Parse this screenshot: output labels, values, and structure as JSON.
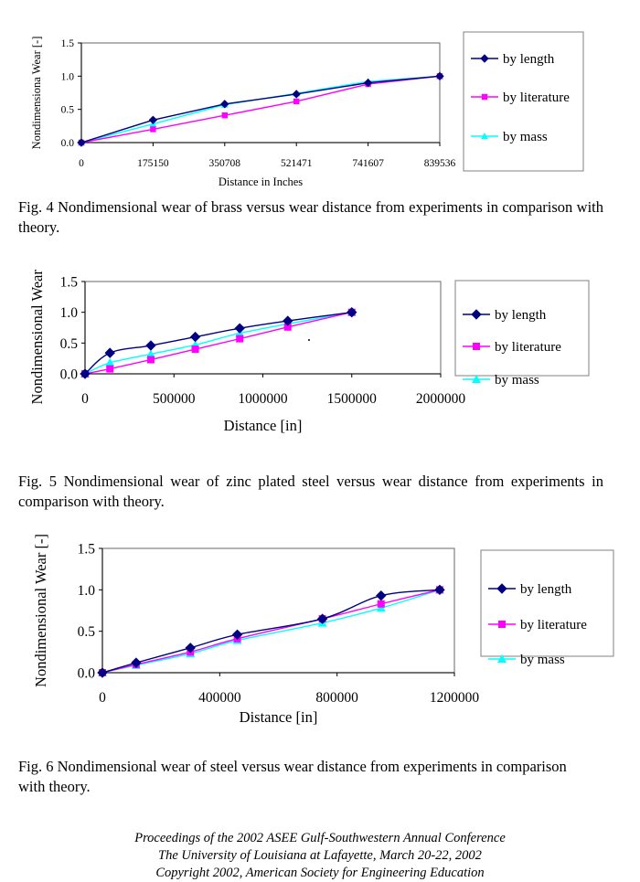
{
  "figures": [
    {
      "caption": "Fig. 4 Nondimensional wear of brass versus wear distance from experiments in comparison with theory."
    },
    {
      "caption": "Fig. 5 Nondimensional wear of zinc plated steel versus wear distance from experiments in comparison with theory."
    },
    {
      "caption": "Fig. 6 Nondimensional wear of steel versus wear distance from experiments in comparison with theory."
    }
  ],
  "chart_data": [
    {
      "type": "line",
      "xscale": "category",
      "categories": [
        "0",
        "175150",
        "350708",
        "521471",
        "741607",
        "839536"
      ],
      "title": "",
      "xlabel": "Distance in Inches",
      "ylabel": "Nondimensiona Wear [-]",
      "ylim": [
        0,
        1.5
      ],
      "yticks": [
        "0.0",
        "0.5",
        "1.0",
        "1.5"
      ],
      "legend_position": "right",
      "series": [
        {
          "name": "by length",
          "values": [
            0,
            0.34,
            0.58,
            0.73,
            0.9,
            1.0
          ]
        },
        {
          "name": "by literature",
          "values": [
            0,
            0.2,
            0.41,
            0.62,
            0.88,
            1.0
          ]
        },
        {
          "name": "by mass",
          "values": [
            0,
            0.28,
            0.57,
            0.74,
            0.92,
            1.0
          ]
        }
      ],
      "colors": {
        "by length": "#000080",
        "by literature": "#ff00ff",
        "by mass": "#00ffff"
      }
    },
    {
      "type": "scatter",
      "xscale": "linear",
      "xlim": [
        0,
        2000000
      ],
      "xticks": [
        "0",
        "500000",
        "1000000",
        "1500000",
        "2000000"
      ],
      "title": "",
      "xlabel": "Distance [in]",
      "ylabel": "Nondimensional Wear [-]",
      "ylim": [
        0,
        1.5
      ],
      "yticks": [
        "0.0",
        "0.5",
        "1.0",
        "1.5"
      ],
      "legend_position": "right",
      "series": [
        {
          "name": "by length",
          "x": [
            0,
            140000,
            370000,
            620000,
            870000,
            1140000,
            1500000
          ],
          "values": [
            0,
            0.34,
            0.46,
            0.6,
            0.74,
            0.86,
            1.0
          ]
        },
        {
          "name": "by literature",
          "x": [
            0,
            140000,
            370000,
            620000,
            870000,
            1140000,
            1500000
          ],
          "values": [
            0,
            0.08,
            0.23,
            0.4,
            0.57,
            0.76,
            1.0
          ]
        },
        {
          "name": "by mass",
          "x": [
            0,
            140000,
            370000,
            620000,
            870000,
            1140000,
            1500000
          ],
          "values": [
            0,
            0.18,
            0.32,
            0.47,
            0.66,
            0.81,
            1.0
          ]
        }
      ],
      "colors": {
        "by length": "#000080",
        "by literature": "#ff00ff",
        "by mass": "#00ffff"
      }
    },
    {
      "type": "scatter",
      "xscale": "linear",
      "xlim": [
        0,
        1200000
      ],
      "xticks": [
        "0",
        "400000",
        "800000",
        "1200000"
      ],
      "title": "",
      "xlabel": "Distance [in]",
      "ylabel": "Nondimensional Wear [-]",
      "ylim": [
        0,
        1.5
      ],
      "yticks": [
        "0.0",
        "0.5",
        "1.0",
        "1.5"
      ],
      "legend_position": "right",
      "series": [
        {
          "name": "by length",
          "x": [
            0,
            115000,
            300000,
            460000,
            750000,
            950000,
            1150000
          ],
          "values": [
            0,
            0.12,
            0.3,
            0.46,
            0.65,
            0.93,
            1.0
          ]
        },
        {
          "name": "by literature",
          "x": [
            0,
            115000,
            300000,
            460000,
            750000,
            950000,
            1150000
          ],
          "values": [
            0,
            0.1,
            0.25,
            0.41,
            0.65,
            0.83,
            1.0
          ]
        },
        {
          "name": "by mass",
          "x": [
            0,
            115000,
            300000,
            460000,
            750000,
            950000,
            1150000
          ],
          "values": [
            0,
            0.09,
            0.23,
            0.39,
            0.6,
            0.78,
            1.0
          ]
        }
      ],
      "colors": {
        "by length": "#000080",
        "by literature": "#ff00ff",
        "by mass": "#00ffff"
      }
    }
  ],
  "footer": {
    "line1": "Proceedings of the 2002 ASEE Gulf-Southwestern Annual Conference",
    "line2": "The University of Louisiana at Lafayette, March 20-22, 2002",
    "line3": "Copyright 2002, American Society for Engineering Education"
  }
}
